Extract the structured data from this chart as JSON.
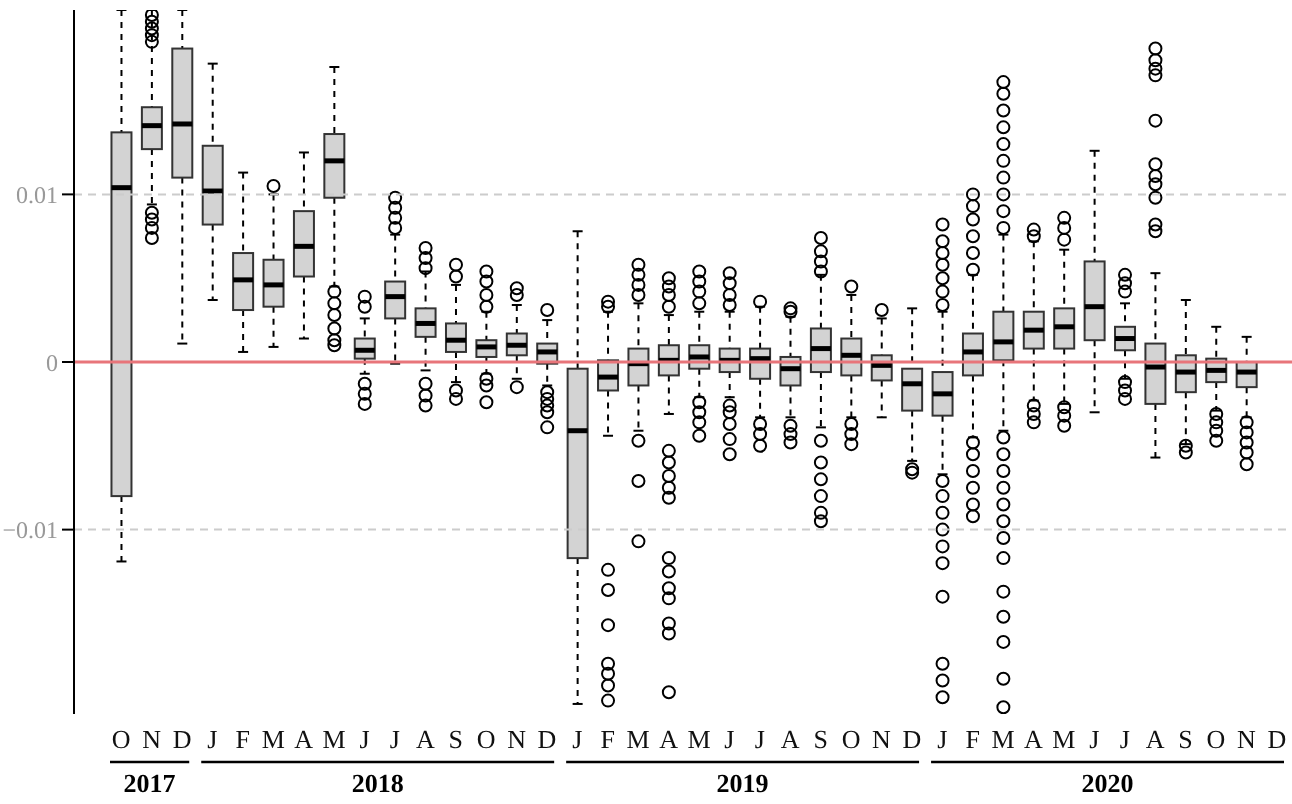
{
  "chart_data": {
    "type": "box",
    "categories": [
      "O",
      "N",
      "D",
      "J",
      "F",
      "M",
      "A",
      "M",
      "J",
      "J",
      "A",
      "S",
      "O",
      "N",
      "D",
      "J",
      "F",
      "M",
      "A",
      "M",
      "J",
      "J",
      "A",
      "S",
      "O",
      "N",
      "D",
      "J",
      "F",
      "M",
      "A",
      "M",
      "J",
      "J",
      "A",
      "S",
      "O",
      "N",
      "D"
    ],
    "color": "#d3d3d3",
    "boxes": [
      {
        "low": -0.0119,
        "q1": -0.008,
        "median": 0.0104,
        "q3": 0.0137,
        "high": 0.021
      },
      {
        "low": 0.0094,
        "q1": 0.0127,
        "median": 0.0141,
        "q3": 0.0152,
        "high": 0.021,
        "outliers": [
          0.0207,
          0.0203,
          0.0199,
          0.0195,
          0.0191,
          0.0089,
          0.0085,
          0.008,
          0.0074
        ]
      },
      {
        "low": 0.0011,
        "q1": 0.011,
        "median": 0.0142,
        "q3": 0.0187,
        "high": 0.021
      },
      {
        "low": 0.0037,
        "q1": 0.0082,
        "median": 0.0102,
        "q3": 0.0129,
        "high": 0.0178
      },
      {
        "low": 0.0006,
        "q1": 0.0031,
        "median": 0.0049,
        "q3": 0.0065,
        "high": 0.0113
      },
      {
        "low": 0.0009,
        "q1": 0.0033,
        "median": 0.0046,
        "q3": 0.0061,
        "high": 0.01,
        "outliers": [
          0.0105
        ]
      },
      {
        "low": 0.0014,
        "q1": 0.0051,
        "median": 0.0069,
        "q3": 0.009,
        "high": 0.0125
      },
      {
        "low": 0.0045,
        "q1": 0.0098,
        "median": 0.012,
        "q3": 0.0136,
        "high": 0.0176,
        "outliers": [
          0.0042,
          0.0035,
          0.0028,
          0.002,
          0.0013,
          0.001
        ]
      },
      {
        "low": -0.0007,
        "q1": 0.0002,
        "median": 0.0007,
        "q3": 0.0014,
        "high": 0.0026,
        "outliers": [
          0.0039,
          0.0033,
          -0.0013,
          -0.0019,
          -0.0025
        ]
      },
      {
        "low": -0.0001,
        "q1": 0.0026,
        "median": 0.0039,
        "q3": 0.0048,
        "high": 0.0076,
        "outliers": [
          0.0098,
          0.0092,
          0.0086,
          0.008
        ]
      },
      {
        "low": -0.0005,
        "q1": 0.0015,
        "median": 0.0023,
        "q3": 0.0032,
        "high": 0.0054,
        "outliers": [
          0.0068,
          0.0062,
          0.0056,
          -0.0013,
          -0.002,
          -0.0026
        ]
      },
      {
        "low": -0.0012,
        "q1": 0.0006,
        "median": 0.0013,
        "q3": 0.0023,
        "high": 0.0046,
        "outliers": [
          0.0058,
          0.0051,
          -0.0017,
          -0.0022
        ]
      },
      {
        "low": -0.0007,
        "q1": 0.0003,
        "median": 0.0009,
        "q3": 0.0013,
        "high": 0.003,
        "outliers": [
          0.0054,
          0.0048,
          0.004,
          0.0033,
          -0.001,
          -0.0014,
          -0.0024
        ]
      },
      {
        "low": -0.001,
        "q1": 0.0004,
        "median": 0.001,
        "q3": 0.0017,
        "high": 0.0034,
        "outliers": [
          0.0044,
          0.004,
          -0.0015
        ]
      },
      {
        "low": -0.0014,
        "q1": -0.0001,
        "median": 0.0006,
        "q3": 0.0011,
        "high": 0.0025,
        "outliers": [
          0.0031,
          -0.0018,
          -0.0022,
          -0.0026,
          -0.003,
          -0.0039
        ]
      },
      {
        "low": -0.0204,
        "q1": -0.0117,
        "median": -0.0041,
        "q3": -0.0004,
        "high": 0.0078
      },
      {
        "low": -0.0044,
        "q1": -0.0017,
        "median": -0.0009,
        "q3": 0.0001,
        "high": 0.003,
        "outliers": [
          0.0036,
          0.0033,
          -0.0124,
          -0.0136,
          -0.0157,
          -0.018,
          -0.0186,
          -0.0193,
          -0.0202
        ]
      },
      {
        "low": -0.0041,
        "q1": -0.0014,
        "median": -0.0001,
        "q3": 0.0008,
        "high": 0.0035,
        "outliers": [
          0.0058,
          0.0052,
          0.0046,
          0.004,
          -0.0047,
          -0.0071,
          -0.0107
        ]
      },
      {
        "low": -0.0031,
        "q1": -0.0008,
        "median": 0.0001,
        "q3": 0.001,
        "high": 0.0028,
        "outliers": [
          0.005,
          0.0045,
          0.004,
          0.0033,
          -0.0053,
          -0.006,
          -0.0068,
          -0.0075,
          -0.0081,
          -0.0117,
          -0.0125,
          -0.0135,
          -0.0141,
          -0.0156,
          -0.0162,
          -0.0197
        ]
      },
      {
        "low": -0.0021,
        "q1": -0.0004,
        "median": 0.0003,
        "q3": 0.001,
        "high": 0.003,
        "outliers": [
          0.0054,
          0.0048,
          0.0042,
          0.0035,
          -0.0024,
          -0.003,
          -0.0036,
          -0.0044
        ]
      },
      {
        "low": -0.0021,
        "q1": -0.0006,
        "median": 0.0001,
        "q3": 0.0008,
        "high": 0.003,
        "outliers": [
          0.0053,
          0.0047,
          0.004,
          0.0034,
          -0.0026,
          -0.003,
          -0.0037,
          -0.0046,
          -0.0055
        ]
      },
      {
        "low": -0.0033,
        "q1": -0.001,
        "median": 0.0002,
        "q3": 0.0008,
        "high": 0.0033,
        "outliers": [
          0.0036,
          -0.0037,
          -0.0043,
          -0.005
        ]
      },
      {
        "low": -0.0033,
        "q1": -0.0014,
        "median": -0.0004,
        "q3": 0.0003,
        "high": 0.0027,
        "outliers": [
          0.0032,
          0.003,
          -0.0038,
          -0.0043,
          -0.0048
        ]
      },
      {
        "low": -0.0039,
        "q1": -0.0006,
        "median": 0.0008,
        "q3": 0.002,
        "high": 0.0052,
        "outliers": [
          0.0074,
          0.0066,
          0.006,
          0.0054,
          -0.0047,
          -0.006,
          -0.007,
          -0.008,
          -0.009,
          -0.0095
        ]
      },
      {
        "low": -0.0033,
        "q1": -0.0008,
        "median": 0.0004,
        "q3": 0.0014,
        "high": 0.004,
        "outliers": [
          0.0045,
          -0.0037,
          -0.0043,
          -0.0049
        ]
      },
      {
        "low": -0.0033,
        "q1": -0.0011,
        "median": -0.0002,
        "q3": 0.0004,
        "high": 0.0026,
        "outliers": [
          0.0031
        ]
      },
      {
        "low": -0.0059,
        "q1": -0.0029,
        "median": -0.0013,
        "q3": -0.0004,
        "high": 0.0032,
        "outliers": [
          -0.0064,
          -0.0066
        ]
      },
      {
        "low": -0.0067,
        "q1": -0.0032,
        "median": -0.0019,
        "q3": -0.0006,
        "high": 0.003,
        "outliers": [
          0.0082,
          0.0072,
          0.0065,
          0.0058,
          0.005,
          0.0042,
          0.0034,
          -0.0071,
          -0.008,
          -0.009,
          -0.01,
          -0.011,
          -0.012,
          -0.014,
          -0.018,
          -0.019,
          -0.02
        ]
      },
      {
        "low": -0.0045,
        "q1": -0.0008,
        "median": 0.0006,
        "q3": 0.0017,
        "high": 0.0052,
        "outliers": [
          0.01,
          0.0093,
          0.0085,
          0.0075,
          0.0065,
          0.0055,
          -0.0048,
          -0.0055,
          -0.0065,
          -0.0075,
          -0.0085,
          -0.0092
        ]
      },
      {
        "low": -0.0041,
        "q1": 0.0001,
        "median": 0.0012,
        "q3": 0.003,
        "high": 0.0076,
        "outliers": [
          0.0167,
          0.016,
          0.015,
          0.014,
          0.013,
          0.012,
          0.011,
          0.01,
          0.009,
          0.008,
          -0.0045,
          -0.0055,
          -0.0065,
          -0.0075,
          -0.0085,
          -0.0095,
          -0.0105,
          -0.0117,
          -0.0137,
          -0.0152,
          -0.0167,
          -0.0189,
          -0.0206
        ]
      },
      {
        "low": -0.0023,
        "q1": 0.0008,
        "median": 0.0019,
        "q3": 0.003,
        "high": 0.0072,
        "outliers": [
          0.0079,
          0.0075,
          -0.0026,
          -0.0031,
          -0.0036
        ]
      },
      {
        "low": -0.0025,
        "q1": 0.0008,
        "median": 0.0021,
        "q3": 0.0032,
        "high": 0.0067,
        "outliers": [
          0.0086,
          0.008,
          0.0073,
          -0.0027,
          -0.0032,
          -0.0038
        ]
      },
      {
        "low": -0.003,
        "q1": 0.0013,
        "median": 0.0033,
        "q3": 0.006,
        "high": 0.0126
      },
      {
        "low": -0.001,
        "q1": 0.0007,
        "median": 0.0014,
        "q3": 0.0021,
        "high": 0.0035,
        "outliers": [
          0.0052,
          0.0047,
          0.0042,
          -0.0012,
          -0.0017,
          -0.0022
        ]
      },
      {
        "low": -0.0057,
        "q1": -0.0025,
        "median": -0.0003,
        "q3": 0.0011,
        "high": 0.0053,
        "outliers": [
          0.0187,
          0.018,
          0.0175,
          0.0171,
          0.0144,
          0.0118,
          0.0111,
          0.0106,
          0.0098,
          0.0082,
          0.0078
        ]
      },
      {
        "low": -0.0049,
        "q1": -0.0018,
        "median": -0.0006,
        "q3": 0.0004,
        "high": 0.0037,
        "outliers": [
          -0.005,
          -0.0054
        ]
      },
      {
        "low": -0.0029,
        "q1": -0.0012,
        "median": -0.0005,
        "q3": 0.0002,
        "high": 0.0021,
        "outliers": [
          -0.0031,
          -0.0036,
          -0.0041,
          -0.0047
        ]
      },
      {
        "low": -0.0033,
        "q1": -0.0015,
        "median": -0.0006,
        "q3": 0.0,
        "high": 0.0015,
        "outliers": [
          -0.0036,
          -0.0042,
          -0.0048,
          -0.0054,
          -0.0061
        ]
      },
      null
    ],
    "ylim": [
      -0.021,
      0.021
    ],
    "yticks": [
      {
        "value": -0.01,
        "label": "−0.01"
      },
      0,
      0.01
    ],
    "grid": "y",
    "ref_lines": [
      {
        "axis": "y",
        "value": 0,
        "color": "#e8757a"
      }
    ],
    "annotations": [
      "2017",
      "2018",
      "2019",
      "2020"
    ]
  }
}
